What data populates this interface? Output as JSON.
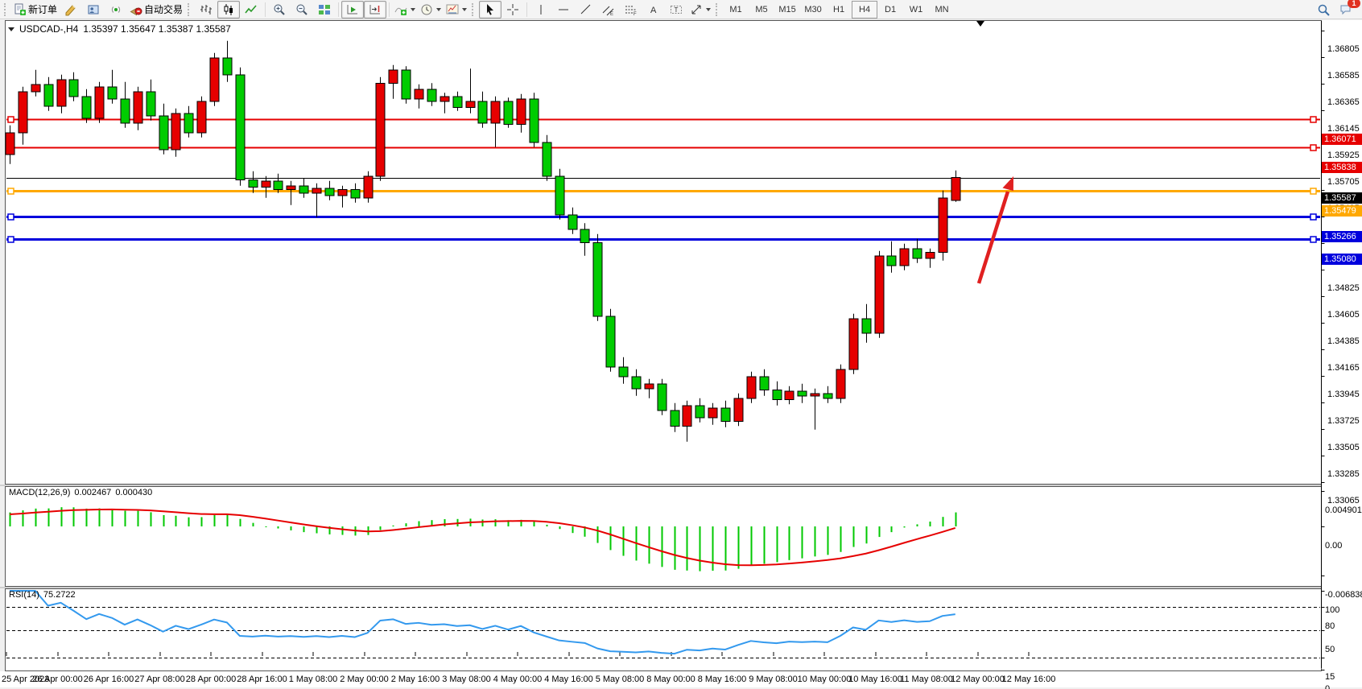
{
  "toolbar": {
    "new_order_label": "新订单",
    "autotrading_label": "自动交易",
    "timeframes": [
      "M1",
      "M5",
      "M15",
      "M30",
      "H1",
      "H4",
      "D1",
      "W1",
      "MN"
    ],
    "active_timeframe": "H4",
    "notification_count": "1"
  },
  "chart": {
    "title": {
      "symbol": "USDCAD-,H4",
      "ohlc": "1.35397 1.35647 1.35387 1.35587"
    },
    "price_axis_ticks": [
      "1.36805",
      "1.36585",
      "1.36365",
      "1.36145",
      "1.35925",
      "1.35705",
      "1.35485",
      "1.35265",
      "1.35045",
      "1.34825",
      "1.34605",
      "1.34385",
      "1.34165",
      "1.33945",
      "1.33725",
      "1.33505",
      "1.33285",
      "1.33065"
    ],
    "hlines": [
      {
        "price": 1.36071,
        "label": "1.36071",
        "color": "#e60000",
        "width": 2,
        "handles": true,
        "role": "resistance"
      },
      {
        "price": 1.35838,
        "label": "1.35838",
        "color": "#e60000",
        "width": 2,
        "handles": true,
        "role": "resistance"
      },
      {
        "price": 1.35587,
        "label": "1.35587",
        "color": "#000000",
        "width": 1,
        "handles": false,
        "role": "current-price"
      },
      {
        "price": 1.35479,
        "label": "1.35479",
        "color": "#ffa800",
        "width": 3,
        "handles": true,
        "role": "pivot"
      },
      {
        "price": 1.35266,
        "label": "1.35266",
        "color": "#0000dd",
        "width": 3,
        "handles": true,
        "role": "support"
      },
      {
        "price": 1.3508,
        "label": "1.35080",
        "color": "#0000dd",
        "width": 3,
        "handles": true,
        "role": "support"
      }
    ],
    "time_labels": [
      "25 Apr 2023",
      "26 Apr 00:00",
      "26 Apr 16:00",
      "27 Apr 08:00",
      "28 Apr 00:00",
      "28 Apr 16:00",
      "1 May 08:00",
      "2 May 00:00",
      "2 May 16:00",
      "3 May 08:00",
      "4 May 00:00",
      "4 May 16:00",
      "5 May 08:00",
      "8 May 00:00",
      "8 May 16:00",
      "9 May 08:00",
      "10 May 00:00",
      "10 May 16:00",
      "11 May 08:00",
      "12 May 00:00",
      "12 May 16:00"
    ],
    "candles": {
      "up_color": "#e60000",
      "down_color": "#00cc00",
      "outline_color": "#000000",
      "data": [
        [
          1.3578,
          1.3602,
          1.357,
          1.3596
        ],
        [
          1.3596,
          1.3634,
          1.3586,
          1.363
        ],
        [
          1.363,
          1.3648,
          1.3626,
          1.3636
        ],
        [
          1.3636,
          1.3642,
          1.3614,
          1.3618
        ],
        [
          1.3618,
          1.3644,
          1.3612,
          1.364
        ],
        [
          1.364,
          1.3646,
          1.3622,
          1.3626
        ],
        [
          1.3626,
          1.3632,
          1.3604,
          1.3608
        ],
        [
          1.3608,
          1.3638,
          1.3604,
          1.3634
        ],
        [
          1.3634,
          1.3648,
          1.362,
          1.3624
        ],
        [
          1.3624,
          1.3638,
          1.36,
          1.3604
        ],
        [
          1.3604,
          1.3634,
          1.3598,
          1.363
        ],
        [
          1.363,
          1.364,
          1.3606,
          1.361
        ],
        [
          1.361,
          1.362,
          1.3578,
          1.3582
        ],
        [
          1.3582,
          1.3616,
          1.3576,
          1.3612
        ],
        [
          1.3612,
          1.3618,
          1.3592,
          1.3596
        ],
        [
          1.3596,
          1.3626,
          1.3592,
          1.3622
        ],
        [
          1.3622,
          1.3662,
          1.3618,
          1.3658
        ],
        [
          1.3658,
          1.3672,
          1.3638,
          1.3644
        ],
        [
          1.3644,
          1.365,
          1.3552,
          1.3557
        ],
        [
          1.3557,
          1.3564,
          1.3546,
          1.3551
        ],
        [
          1.3551,
          1.356,
          1.3542,
          1.3556
        ],
        [
          1.3556,
          1.3562,
          1.3546,
          1.3549
        ],
        [
          1.3549,
          1.3556,
          1.3536,
          1.3552
        ],
        [
          1.3552,
          1.3558,
          1.3542,
          1.3546
        ],
        [
          1.3546,
          1.3554,
          1.3526,
          1.355
        ],
        [
          1.355,
          1.3556,
          1.354,
          1.3544
        ],
        [
          1.3544,
          1.3552,
          1.3534,
          1.3549
        ],
        [
          1.3549,
          1.3554,
          1.3538,
          1.3542
        ],
        [
          1.3542,
          1.3564,
          1.3538,
          1.356
        ],
        [
          1.356,
          1.3642,
          1.3556,
          1.3637
        ],
        [
          1.3637,
          1.3652,
          1.3624,
          1.3648
        ],
        [
          1.3648,
          1.3651,
          1.362,
          1.3624
        ],
        [
          1.3624,
          1.3636,
          1.3616,
          1.3632
        ],
        [
          1.3632,
          1.3637,
          1.3618,
          1.3622
        ],
        [
          1.3622,
          1.3629,
          1.3612,
          1.3626
        ],
        [
          1.3626,
          1.363,
          1.3614,
          1.3617
        ],
        [
          1.3617,
          1.3649,
          1.3612,
          1.3622
        ],
        [
          1.3622,
          1.363,
          1.36,
          1.3604
        ],
        [
          1.3604,
          1.3626,
          1.3584,
          1.3622
        ],
        [
          1.3622,
          1.3625,
          1.36,
          1.3603
        ],
        [
          1.3603,
          1.3628,
          1.3596,
          1.3624
        ],
        [
          1.3624,
          1.3629,
          1.3584,
          1.3588
        ],
        [
          1.3588,
          1.3594,
          1.3556,
          1.356
        ],
        [
          1.356,
          1.3566,
          1.3524,
          1.3528
        ],
        [
          1.3528,
          1.3534,
          1.3512,
          1.3516
        ],
        [
          1.3516,
          1.3521,
          1.3494,
          1.3505
        ],
        [
          1.3505,
          1.3512,
          1.344,
          1.3444
        ],
        [
          1.3444,
          1.345,
          1.3398,
          1.3402
        ],
        [
          1.3402,
          1.341,
          1.3388,
          1.3394
        ],
        [
          1.3394,
          1.34,
          1.3378,
          1.3384
        ],
        [
          1.3384,
          1.3392,
          1.3376,
          1.3388
        ],
        [
          1.3388,
          1.3392,
          1.3362,
          1.3366
        ],
        [
          1.3366,
          1.3372,
          1.3348,
          1.3353
        ],
        [
          1.3353,
          1.3374,
          1.334,
          1.337
        ],
        [
          1.337,
          1.3376,
          1.3356,
          1.336
        ],
        [
          1.336,
          1.3372,
          1.3354,
          1.3368
        ],
        [
          1.3368,
          1.3374,
          1.3352,
          1.3357
        ],
        [
          1.3357,
          1.338,
          1.3353,
          1.3376
        ],
        [
          1.3376,
          1.3398,
          1.3372,
          1.3394
        ],
        [
          1.3394,
          1.34,
          1.3378,
          1.3383
        ],
        [
          1.3383,
          1.339,
          1.337,
          1.3375
        ],
        [
          1.3375,
          1.3386,
          1.3371,
          1.3382
        ],
        [
          1.3382,
          1.3388,
          1.3372,
          1.3378
        ],
        [
          1.3378,
          1.3384,
          1.335,
          1.338
        ],
        [
          1.338,
          1.3386,
          1.3372,
          1.3376
        ],
        [
          1.3376,
          1.3404,
          1.3372,
          1.34
        ],
        [
          1.34,
          1.3446,
          1.3396,
          1.3442
        ],
        [
          1.3442,
          1.3454,
          1.3422,
          1.343
        ],
        [
          1.343,
          1.3498,
          1.3426,
          1.3494
        ],
        [
          1.3494,
          1.3506,
          1.348,
          1.3486
        ],
        [
          1.3486,
          1.3504,
          1.3482,
          1.35
        ],
        [
          1.35,
          1.3508,
          1.3488,
          1.3492
        ],
        [
          1.3492,
          1.35,
          1.3484,
          1.3497
        ],
        [
          1.3497,
          1.3548,
          1.349,
          1.3542
        ],
        [
          1.35397,
          1.35647,
          1.35387,
          1.35587
        ]
      ]
    },
    "trend_arrow": {
      "color": "#e02020",
      "direction": "up"
    }
  },
  "macd": {
    "name": "MACD(12,26,9)",
    "value": "0.002467",
    "signal_value": "0.000430",
    "axis_ticks": [
      "0.004901",
      "0.00",
      "-0.006838"
    ],
    "axis_values": [
      0.004901,
      0,
      -0.006838
    ],
    "histogram_color": "#00c800",
    "signal_color": "#e60000",
    "params": {
      "fast": 12,
      "slow": 26,
      "signal": 9
    }
  },
  "rsi": {
    "name": "RSI(14)",
    "value": "75.2722",
    "axis_ticks": [
      "100",
      "80",
      "50",
      "15",
      "0"
    ],
    "axis_values": [
      100,
      80,
      50,
      15,
      0
    ],
    "levels": [
      80,
      50,
      15
    ],
    "line_color": "#3399ee",
    "period": 14
  }
}
